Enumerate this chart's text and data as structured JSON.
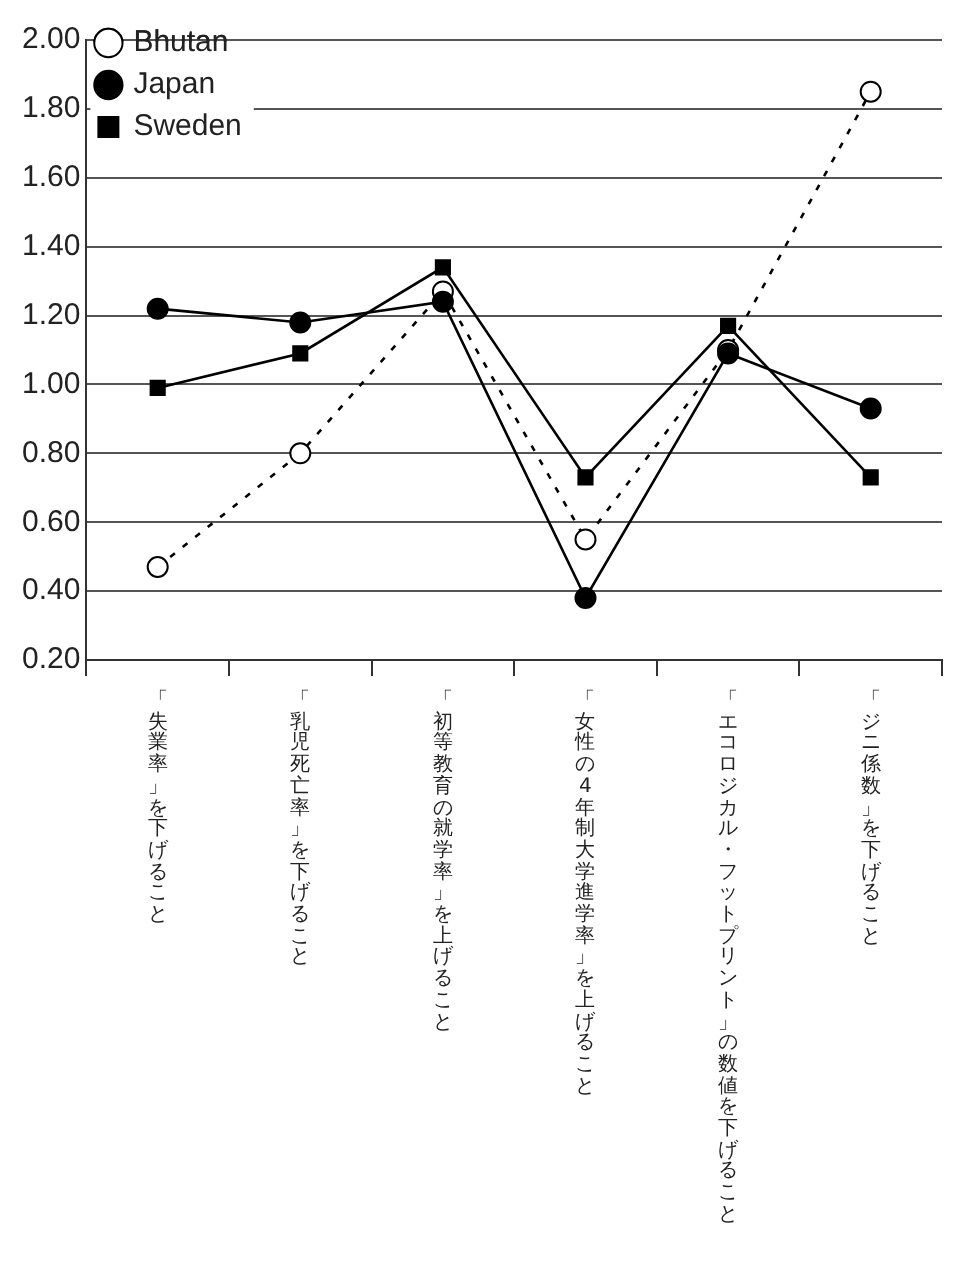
{
  "chart_data": {
    "type": "line",
    "categories": [
      "「失業率」を下げること",
      "「乳児死亡率」を下げること",
      "「初等教育の就学率」を上げること",
      "「女性の4年制大学進学率」を上げること",
      "「エコロジカル・フットプリント」の数値を下げること",
      "「ジニ係数」を下げること"
    ],
    "series": [
      {
        "name": "Bhutan",
        "color": "#000000",
        "marker": "circle",
        "line_style": "dashed",
        "values": [
          0.47,
          0.8,
          1.27,
          0.55,
          1.1,
          1.85
        ]
      },
      {
        "name": "Japan",
        "color": "#000000",
        "marker": "circle",
        "line_style": "solid",
        "values": [
          1.22,
          1.18,
          1.24,
          0.38,
          1.09,
          0.93
        ]
      },
      {
        "name": "Sweden",
        "color": "#000000",
        "marker": "square",
        "line_style": "solid",
        "values": [
          0.99,
          1.09,
          1.34,
          0.73,
          1.17,
          0.73
        ]
      }
    ],
    "ylim": [
      0.2,
      2.0
    ],
    "yticks": [
      {
        "value": 0.2,
        "label": "0.20"
      },
      {
        "value": 0.4,
        "label": "0.40"
      },
      {
        "value": 0.6,
        "label": "0.60"
      },
      {
        "value": 0.8,
        "label": "0.80"
      },
      {
        "value": 1.0,
        "label": "1.00"
      },
      {
        "value": 1.2,
        "label": "1.20"
      },
      {
        "value": 1.4,
        "label": "1.40"
      },
      {
        "value": 1.6,
        "label": "1.60"
      },
      {
        "value": 1.8,
        "label": "1.80"
      },
      {
        "value": 2.0,
        "label": "2.00"
      }
    ],
    "grid": "y",
    "legend": "top left"
  }
}
